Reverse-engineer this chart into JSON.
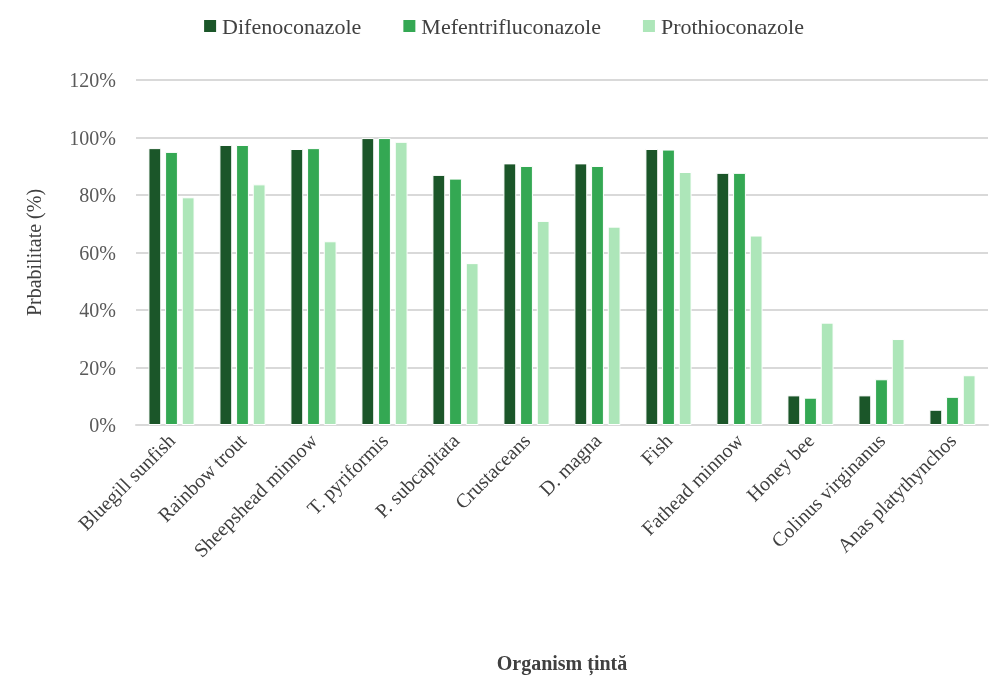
{
  "chart_data": {
    "type": "bar",
    "xlabel": "Organism țintă",
    "ylabel": "Prbabilitate (%)",
    "categories": [
      "Bluegill sunfish",
      "Rainbow trout",
      "Sheepshead minnow",
      "T. pyriformis",
      "P. subcapitata",
      "Crustaceans",
      "D. magna",
      "Fish",
      "Fathead minnow",
      "Honey bee",
      "Colinus virginanus",
      "Anas platythynchos"
    ],
    "series": [
      {
        "name": "Difenoconazole",
        "color": "#1b5629",
        "values": [
          96.3,
          97.4,
          96.0,
          99.8,
          87.0,
          91.0,
          91.0,
          96.0,
          87.7,
          10.3,
          10.3,
          5.3
        ]
      },
      {
        "name": "Mefentrifluconazole",
        "color": "#34a853",
        "values": [
          95.0,
          97.4,
          96.3,
          99.8,
          85.7,
          90.1,
          90.1,
          95.8,
          87.7,
          9.5,
          15.9,
          9.8
        ]
      },
      {
        "name": "Prothioconazole",
        "color": "#ade6b9",
        "values": [
          79.2,
          83.7,
          63.9,
          98.5,
          56.3,
          71.0,
          69.0,
          88.0,
          65.9,
          35.6,
          29.9,
          17.3
        ]
      }
    ],
    "ylim": [
      0,
      120
    ],
    "yticks": [
      {
        "value": 0,
        "label": "0%"
      },
      {
        "value": 20,
        "label": "20%"
      },
      {
        "value": 40,
        "label": "40%"
      },
      {
        "value": 60,
        "label": "60%"
      },
      {
        "value": 80,
        "label": "80%"
      },
      {
        "value": 100,
        "label": "100%"
      },
      {
        "value": 120,
        "label": "120%"
      }
    ],
    "grid": "y",
    "legend": "top"
  }
}
